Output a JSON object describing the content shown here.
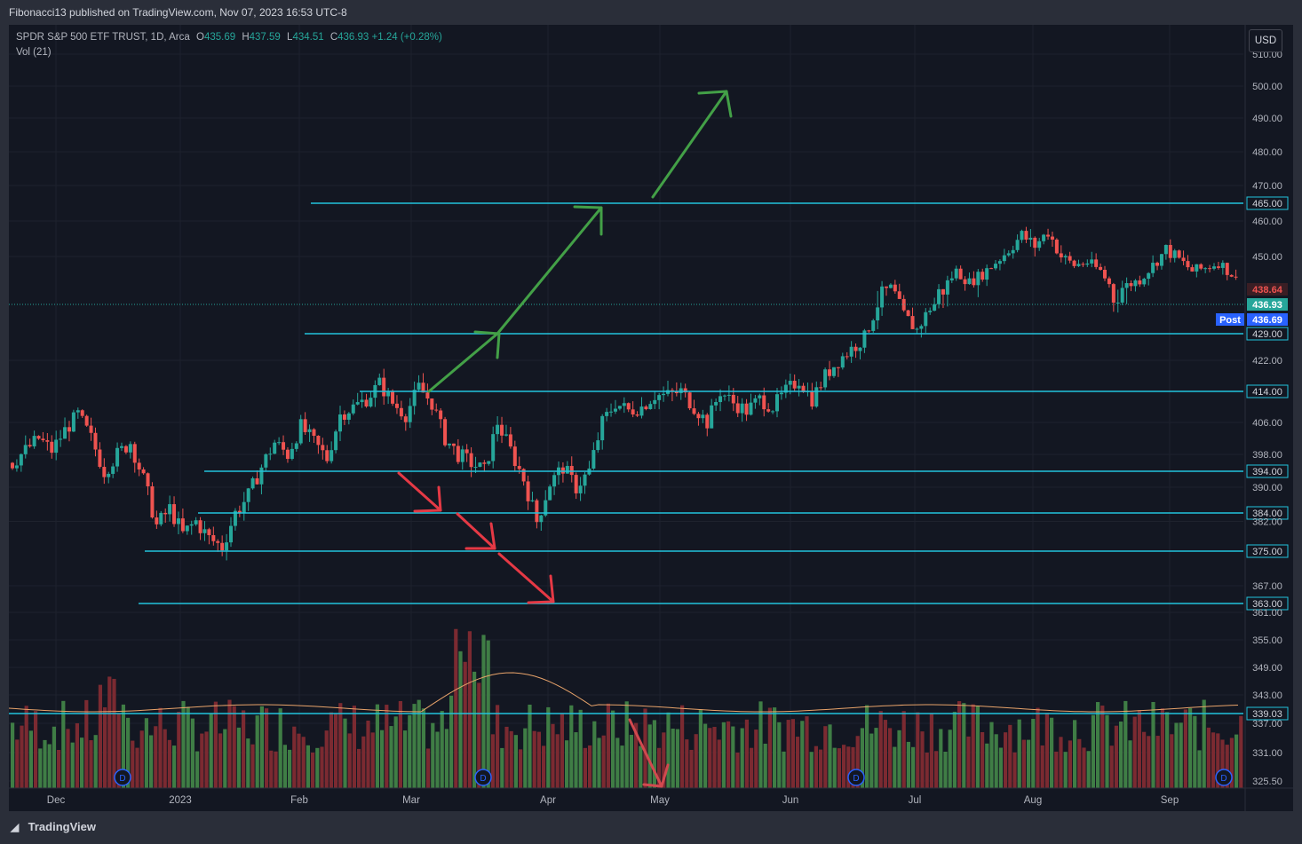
{
  "header": {
    "published_by": "Fibonacci13 published on TradingView.com, Nov 07, 2023 16:53 UTC-8"
  },
  "legend": {
    "symbol": "SPDR S&P 500 ETF TRUST, 1D, Arca",
    "o_label": "O",
    "o": "435.69",
    "h_label": "H",
    "h": "437.59",
    "l_label": "L",
    "l": "434.51",
    "c_label": "C",
    "c": "436.93",
    "change": "+1.24 (+0.28%)",
    "vol": "Vol (21)"
  },
  "currency_button": "USD",
  "footer": {
    "logo_text": "TradingView"
  },
  "colors": {
    "up": "#26a69a",
    "down": "#ef5350",
    "level": "#22c3dc",
    "vol_up": "#3f7d45",
    "vol_down": "#7b2a31",
    "arrow_up": "#43a047",
    "arrow_down": "#e53945",
    "bg": "#131722"
  },
  "chart_data": {
    "type": "candlestick",
    "x_tick_labels": [
      "Dec",
      "2023",
      "Feb",
      "Mar",
      "Apr",
      "May",
      "Jun",
      "Jul",
      "Aug",
      "Sep"
    ],
    "y_tick_labels": [
      "510.00",
      "500.00",
      "490.00",
      "480.00",
      "470.00",
      "460.00",
      "450.00",
      "422.00",
      "406.00",
      "398.00",
      "390.00",
      "382.00",
      "367.00",
      "361.00",
      "355.00",
      "349.00",
      "343.00",
      "337.00",
      "331.00",
      "325.50"
    ],
    "horizontal_levels": [
      "465.00",
      "429.00",
      "414.00",
      "394.00",
      "384.00",
      "375.00",
      "363.00",
      "339.03"
    ],
    "price_labels": {
      "last_close": "438.64",
      "current": "436.93",
      "post_label": "Post",
      "post": "436.69"
    },
    "series_close": [
      [
        0,
        396
      ],
      [
        3,
        399
      ],
      [
        6,
        402
      ],
      [
        9,
        399
      ],
      [
        12,
        404
      ],
      [
        15,
        408
      ],
      [
        18,
        402
      ],
      [
        21,
        394
      ],
      [
        24,
        398
      ],
      [
        27,
        401
      ],
      [
        30,
        392
      ],
      [
        33,
        381
      ],
      [
        36,
        385
      ],
      [
        39,
        379
      ],
      [
        42,
        382
      ],
      [
        45,
        378
      ],
      [
        48,
        376
      ],
      [
        51,
        384
      ],
      [
        54,
        388
      ],
      [
        57,
        395
      ],
      [
        60,
        401
      ],
      [
        63,
        398
      ],
      [
        66,
        405
      ],
      [
        69,
        401
      ],
      [
        72,
        397
      ],
      [
        75,
        408
      ],
      [
        78,
        410
      ],
      [
        81,
        412
      ],
      [
        84,
        416
      ],
      [
        87,
        411
      ],
      [
        90,
        408
      ],
      [
        93,
        415
      ],
      [
        96,
        411
      ],
      [
        99,
        402
      ],
      [
        102,
        398
      ],
      [
        105,
        396
      ],
      [
        108,
        394
      ],
      [
        111,
        406
      ],
      [
        114,
        399
      ],
      [
        117,
        392
      ],
      [
        120,
        382
      ],
      [
        123,
        391
      ],
      [
        126,
        395
      ],
      [
        129,
        390
      ],
      [
        132,
        394
      ],
      [
        135,
        406
      ],
      [
        138,
        411
      ],
      [
        141,
        409
      ],
      [
        144,
        410
      ],
      [
        147,
        413
      ],
      [
        150,
        413
      ],
      [
        153,
        414
      ],
      [
        156,
        410
      ],
      [
        159,
        406
      ],
      [
        162,
        414
      ],
      [
        165,
        411
      ],
      [
        168,
        409
      ],
      [
        171,
        412
      ],
      [
        174,
        410
      ],
      [
        177,
        414
      ],
      [
        180,
        417
      ],
      [
        183,
        412
      ],
      [
        186,
        418
      ],
      [
        189,
        422
      ],
      [
        192,
        425
      ],
      [
        195,
        428
      ],
      [
        198,
        437
      ],
      [
        201,
        439
      ],
      [
        204,
        434
      ],
      [
        207,
        430
      ],
      [
        210,
        436
      ],
      [
        213,
        439
      ],
      [
        216,
        445
      ],
      [
        219,
        441
      ],
      [
        222,
        444
      ],
      [
        225,
        448
      ],
      [
        228,
        452
      ],
      [
        231,
        456
      ],
      [
        234,
        453
      ],
      [
        237,
        457
      ],
      [
        240,
        450
      ],
      [
        243,
        447
      ],
      [
        246,
        448
      ],
      [
        249,
        445
      ],
      [
        252,
        438
      ],
      [
        255,
        440
      ],
      [
        258,
        442
      ],
      [
        261,
        447
      ],
      [
        264,
        452
      ],
      [
        267,
        449
      ],
      [
        270,
        445
      ],
      [
        273,
        446
      ],
      [
        276,
        448
      ],
      [
        279,
        444
      ],
      [
        282,
        436.9
      ]
    ],
    "volume_avg": "339.03",
    "annotations": [
      "green up arrows from 414 toward 465 and beyond",
      "red down arrows toward 384, 375, 363"
    ],
    "dividend_markers": [
      "D",
      "D",
      "D",
      "D"
    ]
  }
}
